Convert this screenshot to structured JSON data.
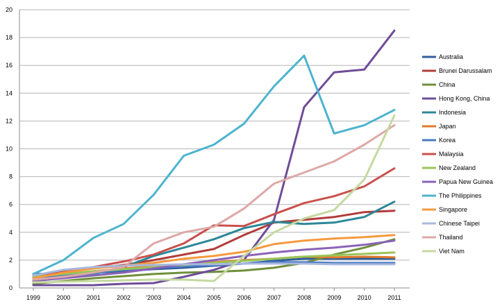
{
  "chart_data": {
    "type": "line",
    "title": "",
    "xlabel": "",
    "ylabel": "",
    "categories": [
      "1999",
      "2000",
      "2001",
      "2002",
      "'2003",
      "2004",
      "2005",
      "2006",
      "2007",
      "2008",
      "2009",
      "2010",
      "2011"
    ],
    "ylim": [
      0,
      20
    ],
    "yticks": [
      "0",
      "2",
      "4",
      "6",
      "8",
      "10",
      "12",
      "14",
      "16",
      "18",
      "20"
    ],
    "grid": "horizontal",
    "legend_position": "right",
    "series": [
      {
        "name": "Australia",
        "color": "#2e5e9e",
        "values": [
          1.0,
          1.05,
          1.1,
          1.2,
          1.35,
          1.45,
          1.6,
          1.75,
          1.95,
          2.1,
          2.1,
          2.1,
          2.1
        ]
      },
      {
        "name": "Brunei Darussalam",
        "color": "#b03c3a",
        "values": [
          0.9,
          1.15,
          1.4,
          1.65,
          2.0,
          2.4,
          2.8,
          3.8,
          4.7,
          4.9,
          5.1,
          5.45,
          5.55
        ]
      },
      {
        "name": "China",
        "color": "#6f8f3a",
        "values": [
          0.3,
          0.5,
          0.7,
          0.85,
          1.0,
          1.1,
          1.15,
          1.25,
          1.45,
          1.8,
          2.4,
          2.9,
          3.5
        ]
      },
      {
        "name": "Hong Kong, China",
        "color": "#6e4c98",
        "values": [
          0.2,
          0.2,
          0.2,
          0.3,
          0.35,
          0.8,
          1.3,
          2.0,
          4.9,
          13.0,
          15.5,
          15.7,
          18.5
        ]
      },
      {
        "name": "Indonesia",
        "color": "#2b8798",
        "values": [
          0.5,
          0.75,
          1.0,
          1.5,
          2.3,
          2.9,
          3.5,
          4.3,
          4.75,
          4.6,
          4.7,
          5.1,
          6.2
        ]
      },
      {
        "name": "Japan",
        "color": "#e07a2a",
        "values": [
          0.8,
          1.0,
          1.2,
          1.4,
          1.55,
          1.7,
          1.85,
          2.0,
          2.1,
          2.25,
          2.2,
          2.25,
          2.2
        ]
      },
      {
        "name": "Korea",
        "color": "#4a7ac4",
        "values": [
          0.7,
          0.9,
          1.1,
          1.3,
          1.45,
          1.55,
          1.65,
          1.75,
          1.85,
          1.85,
          1.8,
          1.8,
          1.8
        ]
      },
      {
        "name": "Malaysia",
        "color": "#c9504c",
        "values": [
          0.8,
          1.1,
          1.5,
          1.9,
          2.4,
          3.2,
          4.5,
          4.45,
          5.3,
          6.1,
          6.6,
          7.3,
          8.6
        ]
      },
      {
        "name": "New Zealand",
        "color": "#9ac457",
        "values": [
          0.8,
          1.0,
          1.2,
          1.35,
          1.5,
          1.65,
          1.8,
          1.95,
          2.1,
          2.25,
          2.35,
          2.45,
          2.55
        ]
      },
      {
        "name": "Papua New Guinea",
        "color": "#8a63b8",
        "values": [
          0.5,
          0.7,
          0.9,
          1.1,
          1.4,
          1.7,
          2.0,
          2.3,
          2.55,
          2.75,
          2.9,
          3.1,
          3.4
        ]
      },
      {
        "name": "The Philippines",
        "color": "#4cb3cf",
        "values": [
          1.0,
          2.0,
          3.6,
          4.6,
          6.7,
          9.5,
          10.3,
          11.8,
          14.5,
          16.7,
          11.1,
          11.7,
          12.8
        ]
      },
      {
        "name": "Singapore",
        "color": "#f59a3e",
        "values": [
          0.7,
          1.1,
          1.4,
          1.6,
          1.8,
          2.1,
          2.3,
          2.6,
          3.15,
          3.4,
          3.55,
          3.65,
          3.8
        ]
      },
      {
        "name": "Chinese Taipei",
        "color": "#a9b8dd",
        "values": [
          0.9,
          1.3,
          1.5,
          1.6,
          1.65,
          1.7,
          1.7,
          1.75,
          1.75,
          1.75,
          1.7,
          1.7,
          1.7
        ]
      },
      {
        "name": "Thailand",
        "color": "#dda8a6",
        "values": [
          0.6,
          0.8,
          1.1,
          1.5,
          3.2,
          4.0,
          4.4,
          5.7,
          7.5,
          8.3,
          9.1,
          10.3,
          11.7
        ]
      },
      {
        "name": "Viet Nam",
        "color": "#c4d9a0",
        "values": [
          0.4,
          0.45,
          0.5,
          0.55,
          0.6,
          0.6,
          0.5,
          2.3,
          4.0,
          5.0,
          5.6,
          7.8,
          12.4
        ]
      }
    ]
  }
}
